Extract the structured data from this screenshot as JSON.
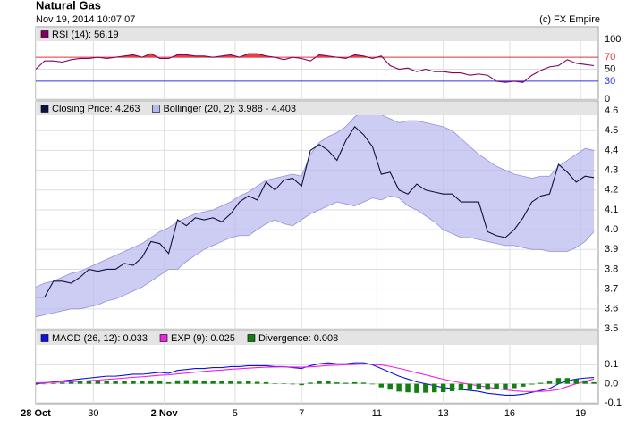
{
  "header": {
    "title": "Natural Gas",
    "datetime": "Nov 19, 2014 10:07:07",
    "credit": "(c) FX Empire"
  },
  "chart_data": [
    {
      "type": "line",
      "xlim": [
        0,
        63.5
      ],
      "ylim": [
        0,
        121
      ],
      "yticks": [
        0,
        30,
        50,
        70,
        100
      ],
      "thresholds": [
        {
          "value": 70,
          "color": "#e03030"
        },
        {
          "value": 30,
          "color": "#3030e0"
        }
      ],
      "fill_above_color": "#e84040",
      "fill_below_color": "#4040e8",
      "series": [
        {
          "name": "RSI (14): 56.19",
          "color": "#800060",
          "values": [
            50,
            64,
            64,
            62,
            66,
            68,
            68,
            70,
            68,
            70,
            72,
            74,
            70,
            76,
            68,
            68,
            74,
            74,
            72,
            72,
            70,
            72,
            74,
            70,
            76,
            76,
            72,
            70,
            66,
            70,
            68,
            64,
            74,
            72,
            70,
            68,
            74,
            72,
            68,
            72,
            56,
            50,
            52,
            46,
            50,
            46,
            46,
            44,
            44,
            40,
            42,
            40,
            30,
            28,
            30,
            28,
            40,
            48,
            54,
            56,
            66,
            60,
            58,
            56
          ]
        }
      ]
    },
    {
      "type": "band_line",
      "xlim": [
        0,
        63.5
      ],
      "ylim": [
        3.5,
        4.65
      ],
      "yticks": [
        3.5,
        3.6,
        3.7,
        3.8,
        3.9,
        {
          "value": 4,
          "label": "4.0"
        },
        4.1,
        4.2,
        4.3,
        4.4,
        4.5,
        4.6
      ],
      "series": [
        {
          "name": "Closing Price: 4.263",
          "color": "#101040",
          "values": [
            3.66,
            3.66,
            3.74,
            3.74,
            3.73,
            3.76,
            3.8,
            3.79,
            3.8,
            3.8,
            3.83,
            3.82,
            3.86,
            3.94,
            3.93,
            3.88,
            4.05,
            4.02,
            4.06,
            4.05,
            4.06,
            4.04,
            4.08,
            4.14,
            4.17,
            4.15,
            4.24,
            4.2,
            4.25,
            4.26,
            4.22,
            4.4,
            4.43,
            4.4,
            4.35,
            4.45,
            4.52,
            4.48,
            4.42,
            4.28,
            4.29,
            4.2,
            4.18,
            4.23,
            4.2,
            4.19,
            4.18,
            4.18,
            4.14,
            4.14,
            4.14,
            3.99,
            3.97,
            3.96,
            4,
            4.06,
            4.14,
            4.17,
            4.18,
            4.33,
            4.29,
            4.24,
            4.27,
            4.263
          ]
        }
      ],
      "band": {
        "name": "Bollinger (20, 2): 3.988 - 4.403",
        "color": "#b8b8f0",
        "edge_color": "#9090e0",
        "upper": [
          3.71,
          3.73,
          3.74,
          3.76,
          3.78,
          3.79,
          3.81,
          3.83,
          3.85,
          3.87,
          3.89,
          3.91,
          3.93,
          3.96,
          3.99,
          4.01,
          4.04,
          4.06,
          4.08,
          4.09,
          4.1,
          4.12,
          4.14,
          4.17,
          4.19,
          4.22,
          4.25,
          4.26,
          4.27,
          4.28,
          4.27,
          4.38,
          4.44,
          4.47,
          4.49,
          4.52,
          4.57,
          4.6,
          4.59,
          4.58,
          4.56,
          4.54,
          4.55,
          4.55,
          4.54,
          4.53,
          4.52,
          4.5,
          4.46,
          4.42,
          4.38,
          4.35,
          4.32,
          4.3,
          4.28,
          4.27,
          4.26,
          4.27,
          4.27,
          4.32,
          4.35,
          4.38,
          4.41,
          4.4
        ],
        "lower": [
          3.56,
          3.57,
          3.58,
          3.59,
          3.6,
          3.6,
          3.61,
          3.62,
          3.64,
          3.65,
          3.67,
          3.69,
          3.71,
          3.74,
          3.77,
          3.8,
          3.8,
          3.84,
          3.87,
          3.9,
          3.92,
          3.94,
          3.96,
          3.97,
          3.97,
          4,
          4.03,
          4.05,
          4.03,
          4.02,
          4.05,
          4.08,
          4.1,
          4.12,
          4.14,
          4.13,
          4.12,
          4.14,
          4.16,
          4.15,
          4.17,
          4.16,
          4.12,
          4.1,
          4.07,
          4.04,
          4,
          3.98,
          3.96,
          3.96,
          3.95,
          3.94,
          3.93,
          3.92,
          3.92,
          3.91,
          3.9,
          3.9,
          3.89,
          3.89,
          3.89,
          3.91,
          3.94,
          3.99
        ]
      }
    },
    {
      "type": "macd",
      "xlim": [
        0,
        63.5
      ],
      "ylim": [
        -0.105,
        0.28
      ],
      "yticks": [
        -0.1,
        {
          "value": 0,
          "label": "0.0"
        },
        0.1
      ],
      "xticks": [
        {
          "value": 0,
          "label": "28 Oct"
        },
        {
          "value": 6.5,
          "label": "30"
        },
        {
          "value": 14.5,
          "label": "2 Nov"
        },
        {
          "value": 22.5,
          "label": "5"
        },
        {
          "value": 30,
          "label": "7"
        },
        {
          "value": 38.5,
          "label": "11"
        },
        {
          "value": 46,
          "label": "13"
        },
        {
          "value": 53.5,
          "label": "16"
        },
        {
          "value": 61.5,
          "label": "19"
        }
      ],
      "series": [
        {
          "name": "MACD (26, 12): 0.033",
          "color": "#1010e0",
          "kind": "line",
          "values": [
            0,
            0.005,
            0.01,
            0.015,
            0.02,
            0.025,
            0.03,
            0.035,
            0.04,
            0.04,
            0.045,
            0.05,
            0.05,
            0.055,
            0.06,
            0.055,
            0.07,
            0.075,
            0.08,
            0.08,
            0.085,
            0.085,
            0.09,
            0.09,
            0.095,
            0.095,
            0.095,
            0.09,
            0.09,
            0.085,
            0.08,
            0.095,
            0.105,
            0.11,
            0.105,
            0.105,
            0.11,
            0.11,
            0.1,
            0.08,
            0.06,
            0.04,
            0.025,
            0.01,
            0,
            -0.01,
            -0.02,
            -0.025,
            -0.03,
            -0.035,
            -0.04,
            -0.05,
            -0.055,
            -0.06,
            -0.06,
            -0.055,
            -0.045,
            -0.035,
            -0.025,
            0,
            0.015,
            0.025,
            0.03,
            0.033
          ]
        },
        {
          "name": "EXP (9): 0.025",
          "color": "#f020e0",
          "kind": "line",
          "values": [
            0.005,
            0.006,
            0.007,
            0.009,
            0.011,
            0.013,
            0.016,
            0.019,
            0.023,
            0.026,
            0.03,
            0.034,
            0.037,
            0.041,
            0.045,
            0.047,
            0.052,
            0.056,
            0.061,
            0.065,
            0.069,
            0.072,
            0.076,
            0.079,
            0.082,
            0.085,
            0.087,
            0.088,
            0.089,
            0.088,
            0.087,
            0.089,
            0.092,
            0.096,
            0.098,
            0.1,
            0.102,
            0.104,
            0.103,
            0.099,
            0.091,
            0.081,
            0.07,
            0.058,
            0.047,
            0.035,
            0.024,
            0.014,
            0.005,
            -0.003,
            -0.01,
            -0.018,
            -0.025,
            -0.032,
            -0.037,
            -0.04,
            -0.041,
            -0.04,
            -0.037,
            -0.03,
            -0.015,
            0,
            0.012,
            0.025
          ]
        },
        {
          "name": "Divergence: 0.008",
          "color": "#108010",
          "kind": "bar",
          "values": [
            -0.005,
            -0.001,
            0.003,
            0.006,
            0.009,
            0.012,
            0.014,
            0.016,
            0.017,
            0.014,
            0.015,
            0.016,
            0.013,
            0.014,
            0.015,
            0.008,
            0.018,
            0.019,
            0.019,
            0.015,
            0.016,
            0.013,
            0.014,
            0.011,
            0.013,
            0.01,
            0.008,
            0.002,
            0.001,
            -0.003,
            -0.007,
            0.006,
            0.013,
            0.014,
            0.007,
            0.005,
            0.008,
            0.006,
            -0.003,
            -0.019,
            -0.031,
            -0.041,
            -0.045,
            -0.048,
            -0.047,
            -0.045,
            -0.044,
            -0.039,
            -0.035,
            -0.032,
            -0.03,
            -0.032,
            -0.03,
            -0.028,
            -0.023,
            -0.015,
            -0.004,
            0.005,
            0.012,
            0.03,
            0.03,
            0.025,
            0.018,
            0.008
          ]
        }
      ]
    }
  ]
}
